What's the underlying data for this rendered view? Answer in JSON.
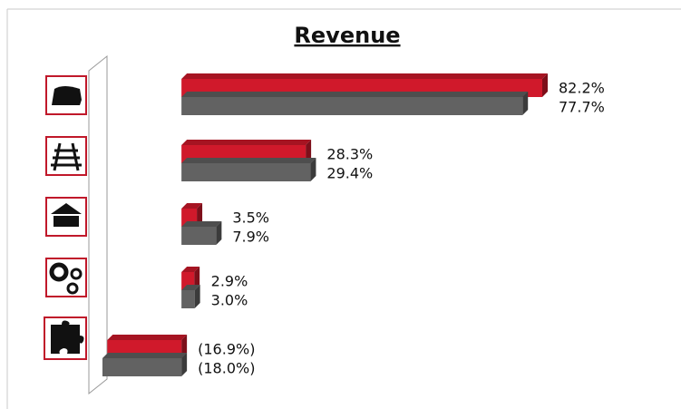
{
  "chart_data": {
    "type": "bar",
    "orientation": "horizontal",
    "title": "Revenue",
    "categories": [
      null,
      null,
      null,
      null,
      null
    ],
    "series": [
      {
        "color": "#d0192b",
        "values": [
          82.2,
          28.3,
          3.5,
          2.9,
          -16.9
        ],
        "value_labels": [
          "82.2%",
          "28.3%",
          "3.5%",
          "2.9%",
          "(16.9%)"
        ]
      },
      {
        "color": "#626262",
        "values": [
          77.7,
          29.4,
          7.9,
          3.0,
          -18.0
        ],
        "value_labels": [
          "77.7%",
          "29.4%",
          "7.9%",
          "3.0%",
          "(18.0%)"
        ]
      }
    ]
  }
}
